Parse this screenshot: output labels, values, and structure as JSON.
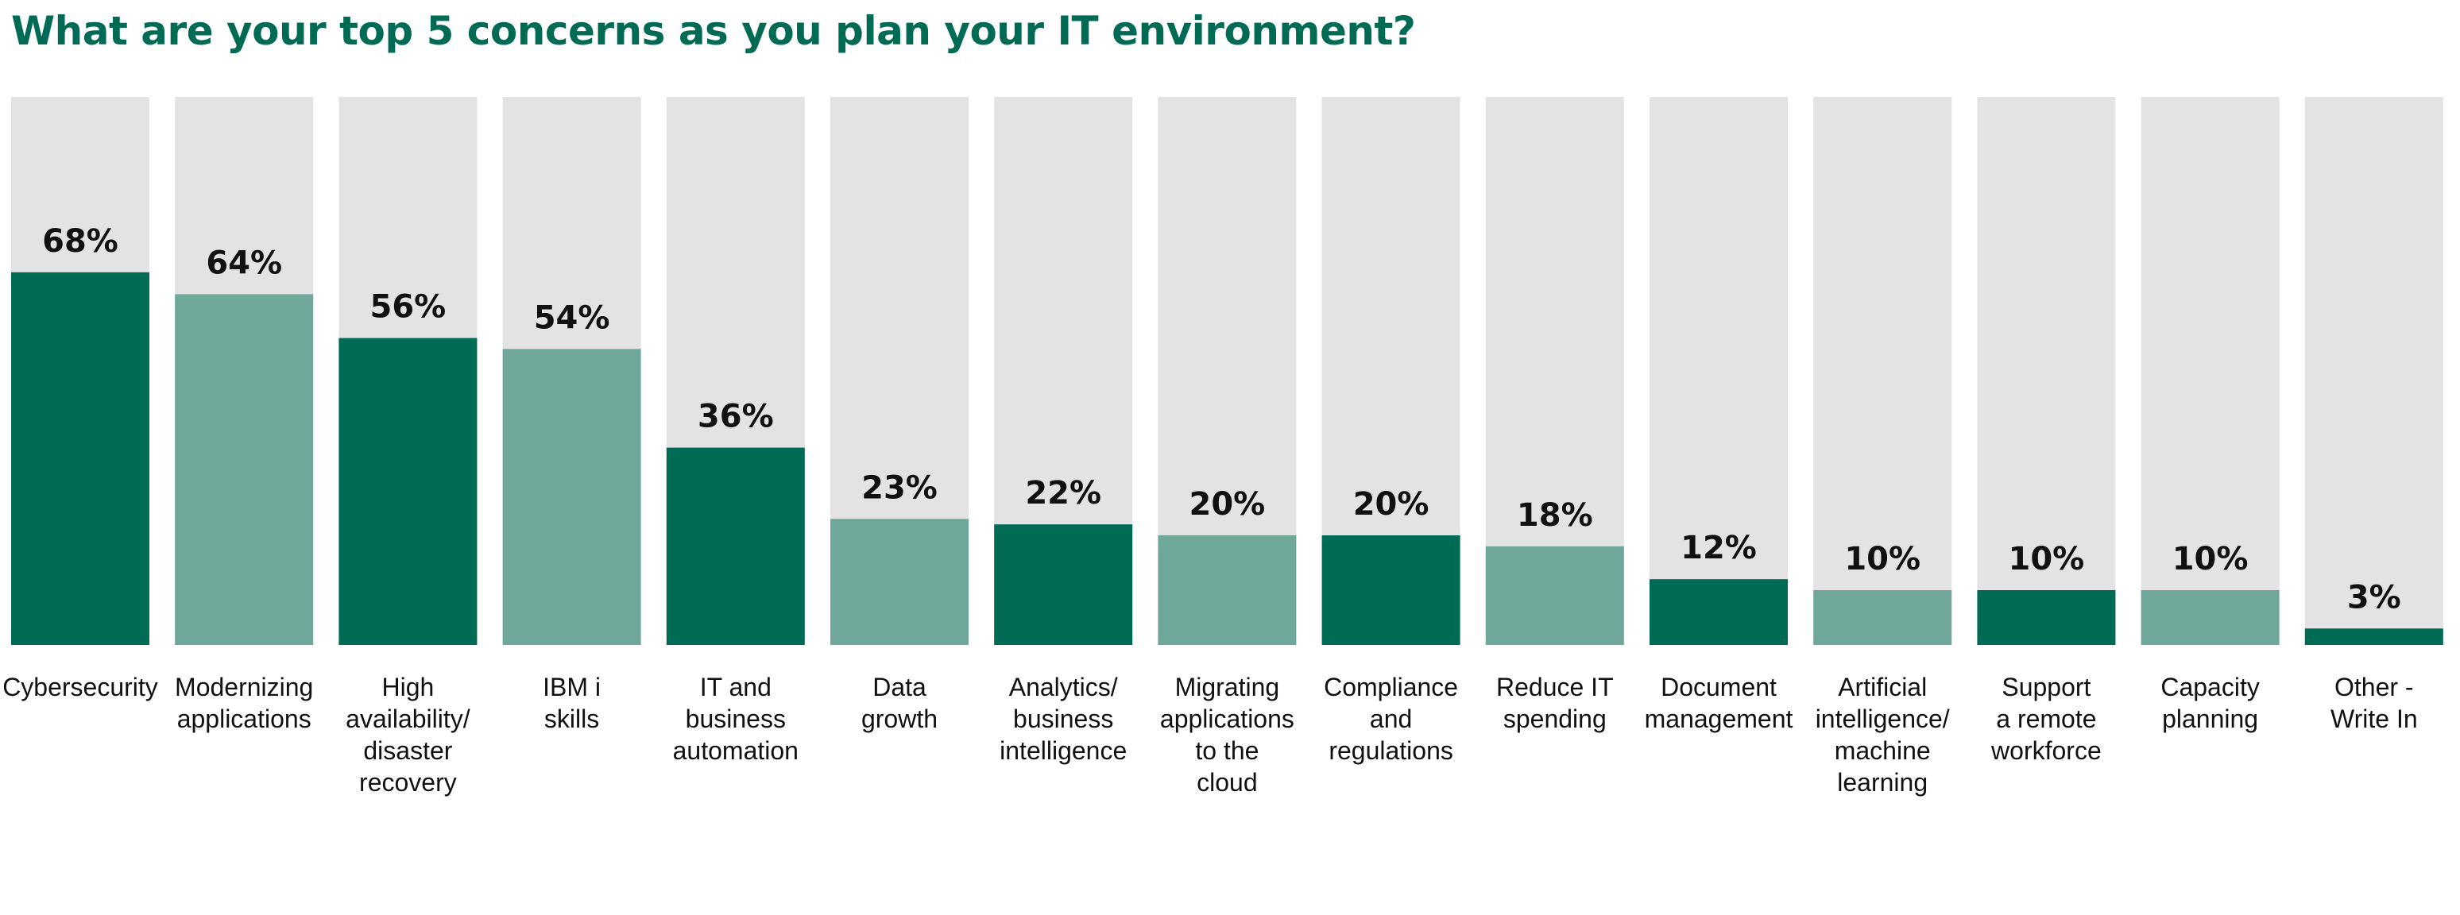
{
  "title": "What are your top 5 concerns as you plan your IT environment?",
  "colors": {
    "title": "#006b55",
    "bar_dark": "#006b55",
    "bar_light": "#6fa79a",
    "track": "#e3e3e3",
    "label": "#111111"
  },
  "chart_data": {
    "type": "bar",
    "title": "What are your top 5 concerns as you plan your IT environment?",
    "xlabel": "",
    "ylabel": "",
    "ylim": [
      0,
      100
    ],
    "grid": false,
    "background_track": true,
    "value_suffix": "%",
    "categories": [
      "Cybersecurity",
      "Modernizing applications",
      "High availability/ disaster recovery",
      "IBM i skills",
      "IT and business automation",
      "Data growth",
      "Analytics/ business intelligence",
      "Migrating applications to the cloud",
      "Compliance and regulations",
      "Reduce IT spending",
      "Document management",
      "Artificial intelligence/ machine learning",
      "Support a remote workforce",
      "Capacity planning",
      "Other - Write In"
    ],
    "category_lines": [
      [
        "Cybersecurity"
      ],
      [
        "Modernizing",
        "applications"
      ],
      [
        "High",
        "availability/",
        "disaster",
        "recovery"
      ],
      [
        "IBM i",
        "skills"
      ],
      [
        "IT and",
        "business",
        "automation"
      ],
      [
        "Data",
        "growth"
      ],
      [
        "Analytics/",
        "business",
        "intelligence"
      ],
      [
        "Migrating",
        "applications",
        "to the",
        "cloud"
      ],
      [
        "Compliance",
        "and",
        "regulations"
      ],
      [
        "Reduce IT",
        "spending"
      ],
      [
        "Document",
        "management"
      ],
      [
        "Artificial",
        "intelligence/",
        "machine",
        "learning"
      ],
      [
        "Support",
        "a remote",
        "workforce"
      ],
      [
        "Capacity",
        "planning"
      ],
      [
        "Other -",
        "Write In"
      ]
    ],
    "values": [
      68,
      64,
      56,
      54,
      36,
      23,
      22,
      20,
      20,
      18,
      12,
      10,
      10,
      10,
      3
    ],
    "value_labels": [
      "68%",
      "64%",
      "56%",
      "54%",
      "36%",
      "23%",
      "22%",
      "20%",
      "20%",
      "18%",
      "12%",
      "10%",
      "10%",
      "10%",
      "3%"
    ]
  }
}
